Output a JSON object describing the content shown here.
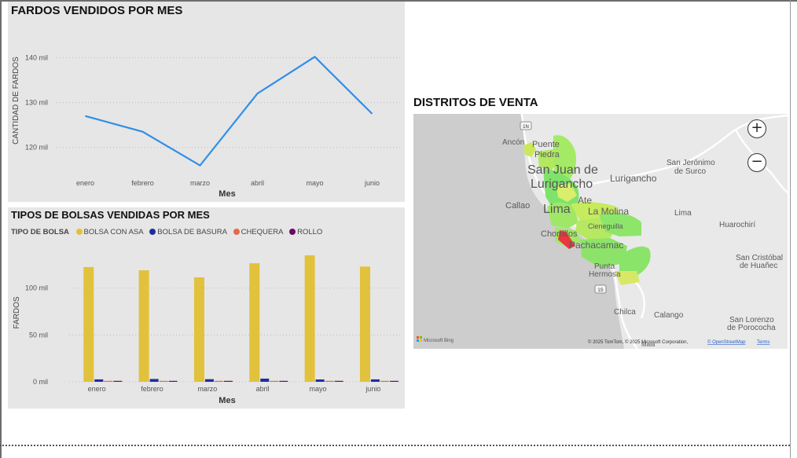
{
  "line_chart": {
    "title": "FARDOS VENDIDOS POR MES",
    "x_axis_title": "Mes",
    "y_axis_title": "CANTIDAD DE FARDOS",
    "y_ticks": [
      "120 mil",
      "130 mil",
      "140 mil"
    ],
    "line_color": "#2f8fe8"
  },
  "bar_chart": {
    "title": "TIPOS DE BOLSAS VENDIDAS POR MES",
    "legend_title": "TIPO DE BOLSA",
    "x_axis_title": "Mes",
    "y_axis_title": "FARDOS",
    "y_ticks": [
      "0 mil",
      "50 mil",
      "100 mil"
    ]
  },
  "chart_data": [
    {
      "type": "line",
      "title": "FARDOS VENDIDOS POR MES",
      "xlabel": "Mes",
      "ylabel": "CANTIDAD DE FARDOS",
      "categories": [
        "enero",
        "febrero",
        "marzo",
        "abril",
        "mayo",
        "junio"
      ],
      "series": [
        {
          "values": [
            127000,
            123500,
            116000,
            132000,
            140200,
            127500
          ],
          "color": "#2f8fe8"
        }
      ],
      "ylim": [
        114000,
        145500
      ],
      "yticks": [
        120000,
        130000,
        140000
      ],
      "grid": "horizontal dotted",
      "legend": "none"
    },
    {
      "type": "bar",
      "title": "TIPOS DE BOLSAS VENDIDAS POR MES",
      "xlabel": "Mes",
      "ylabel": "FARDOS",
      "categories": [
        "enero",
        "febrero",
        "marzo",
        "abril",
        "mayo",
        "junio"
      ],
      "series": [
        {
          "name": "BOLSA CON ASA",
          "color": "#e2c13c",
          "values": [
            122500,
            119000,
            111500,
            126500,
            135000,
            123000
          ]
        },
        {
          "name": "BOLSA DE BASURA",
          "color": "#1f2e9e",
          "values": [
            2600,
            3000,
            2800,
            3400,
            2500,
            2600
          ]
        },
        {
          "name": "CHEQUERA",
          "color": "#e8684a",
          "values": [
            500,
            500,
            400,
            600,
            500,
            500
          ]
        },
        {
          "name": "ROLLO",
          "color": "#6b0a6b",
          "values": [
            700,
            700,
            600,
            800,
            700,
            700
          ]
        }
      ],
      "ylim": [
        0,
        137500
      ],
      "yticks": [
        0,
        50000,
        100000
      ],
      "grid": "horizontal dotted",
      "legend": "top-left"
    }
  ],
  "map": {
    "title": "DISTRITOS DE VENTA",
    "labels": {
      "ancon": "Ancón",
      "puente_piedra_1": "Puente",
      "puente_piedra_2": "Piedra",
      "sjl_1": "San Juan de",
      "sjl_2": "Lurigancho",
      "lurigancho": "Lurigancho",
      "sjm_1": "San Jerónimo",
      "sjm_2": "de Surco",
      "callao": "Callao",
      "lima_city": "Lima",
      "ate": "Ate",
      "la_molina": "La Molina",
      "lima_region": "Lima",
      "huarochiri": "Huarochirí",
      "cieneguilla": "Cieneguilla",
      "chorrillos": "Chorrillos",
      "pachacamac": "Pachacamac",
      "sch_1": "San Cristóbal",
      "sch_2": "de Huañec",
      "punta_hermosa_1": "Punta",
      "punta_hermosa_2": "Hermosa",
      "chilca": "Chilca",
      "calango": "Calango",
      "mala": "Mala",
      "slp_1": "San Lorenzo",
      "slp_2": "de Porococha",
      "shield_1n": "1N",
      "shield_1s": "1S"
    },
    "zoom_in": "+",
    "zoom_out": "−",
    "bing_logo": "Microsoft Bing",
    "copyright": "© 2025 TomTom, © 2025 Microsoft Corporation,",
    "osm": "© OpenStreetMap",
    "terms": "Terms"
  }
}
